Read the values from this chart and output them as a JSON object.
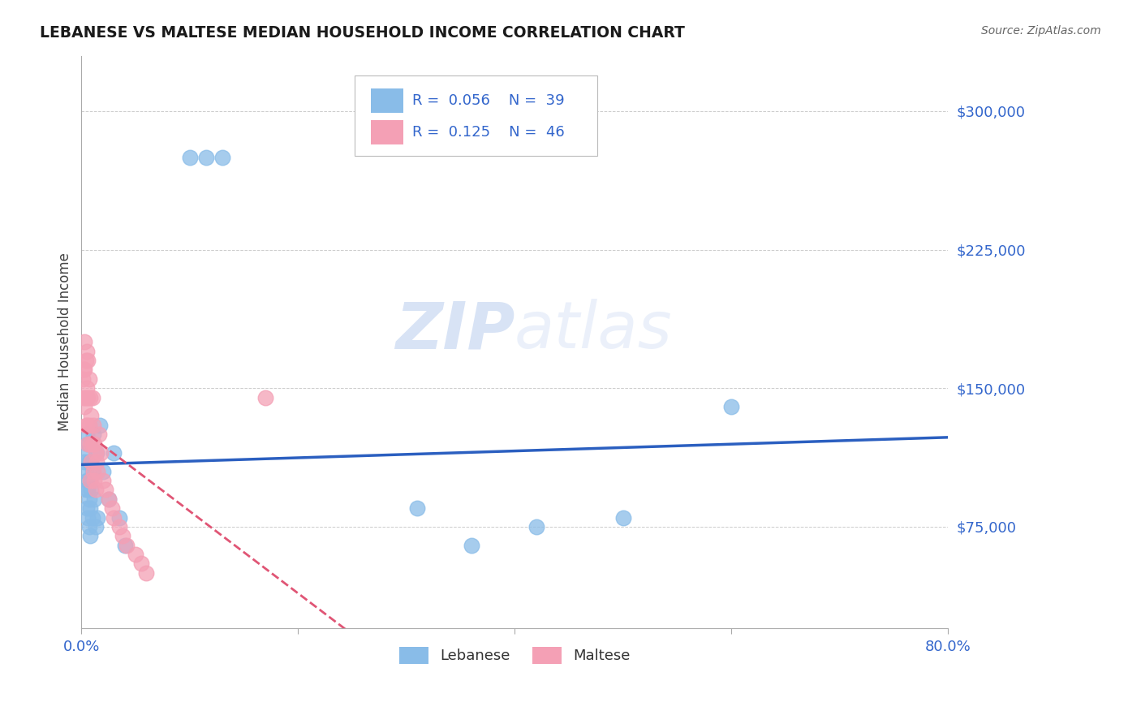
{
  "title": "LEBANESE VS MALTESE MEDIAN HOUSEHOLD INCOME CORRELATION CHART",
  "source": "Source: ZipAtlas.com",
  "ylabel": "Median Household Income",
  "xlim": [
    0.0,
    0.8
  ],
  "ylim": [
    20000,
    330000
  ],
  "yticks": [
    75000,
    150000,
    225000,
    300000
  ],
  "ytick_labels": [
    "$75,000",
    "$150,000",
    "$225,000",
    "$300,000"
  ],
  "xticks": [
    0.0,
    0.2,
    0.4,
    0.6,
    0.8
  ],
  "xtick_labels": [
    "0.0%",
    "",
    "",
    "",
    "80.0%"
  ],
  "lebanese_color": "#89BCE8",
  "maltese_color": "#F4A0B5",
  "lebanese_line_color": "#2B5FC0",
  "maltese_line_color": "#E05575",
  "legend_R_lebanese": "0.056",
  "legend_N_lebanese": "39",
  "legend_R_maltese": "0.125",
  "legend_N_maltese": "46",
  "lebanese_x": [
    0.002,
    0.003,
    0.004,
    0.004,
    0.005,
    0.005,
    0.005,
    0.006,
    0.006,
    0.006,
    0.007,
    0.007,
    0.007,
    0.008,
    0.008,
    0.008,
    0.009,
    0.009,
    0.01,
    0.01,
    0.011,
    0.012,
    0.013,
    0.014,
    0.015,
    0.017,
    0.02,
    0.025,
    0.03,
    0.035,
    0.04,
    0.1,
    0.115,
    0.13,
    0.31,
    0.36,
    0.42,
    0.5,
    0.6
  ],
  "lebanese_y": [
    115000,
    110000,
    105000,
    95000,
    125000,
    100000,
    85000,
    120000,
    95000,
    80000,
    110000,
    90000,
    75000,
    100000,
    85000,
    70000,
    110000,
    95000,
    105000,
    80000,
    125000,
    90000,
    75000,
    115000,
    80000,
    130000,
    105000,
    90000,
    115000,
    80000,
    65000,
    275000,
    275000,
    275000,
    85000,
    65000,
    75000,
    80000,
    140000
  ],
  "maltese_x": [
    0.001,
    0.002,
    0.002,
    0.003,
    0.003,
    0.003,
    0.004,
    0.004,
    0.004,
    0.005,
    0.005,
    0.005,
    0.006,
    0.006,
    0.006,
    0.007,
    0.007,
    0.008,
    0.008,
    0.008,
    0.009,
    0.009,
    0.01,
    0.01,
    0.011,
    0.011,
    0.012,
    0.012,
    0.013,
    0.013,
    0.014,
    0.015,
    0.016,
    0.018,
    0.02,
    0.022,
    0.025,
    0.028,
    0.03,
    0.035,
    0.038,
    0.042,
    0.05,
    0.055,
    0.06,
    0.17
  ],
  "maltese_y": [
    155000,
    160000,
    145000,
    175000,
    160000,
    140000,
    165000,
    145000,
    130000,
    170000,
    150000,
    130000,
    165000,
    145000,
    120000,
    155000,
    130000,
    145000,
    120000,
    100000,
    135000,
    110000,
    145000,
    120000,
    130000,
    105000,
    120000,
    100000,
    115000,
    95000,
    110000,
    105000,
    125000,
    115000,
    100000,
    95000,
    90000,
    85000,
    80000,
    75000,
    70000,
    65000,
    60000,
    55000,
    50000,
    145000
  ],
  "background_color": "#FFFFFF",
  "grid_color": "#CCCCCC"
}
